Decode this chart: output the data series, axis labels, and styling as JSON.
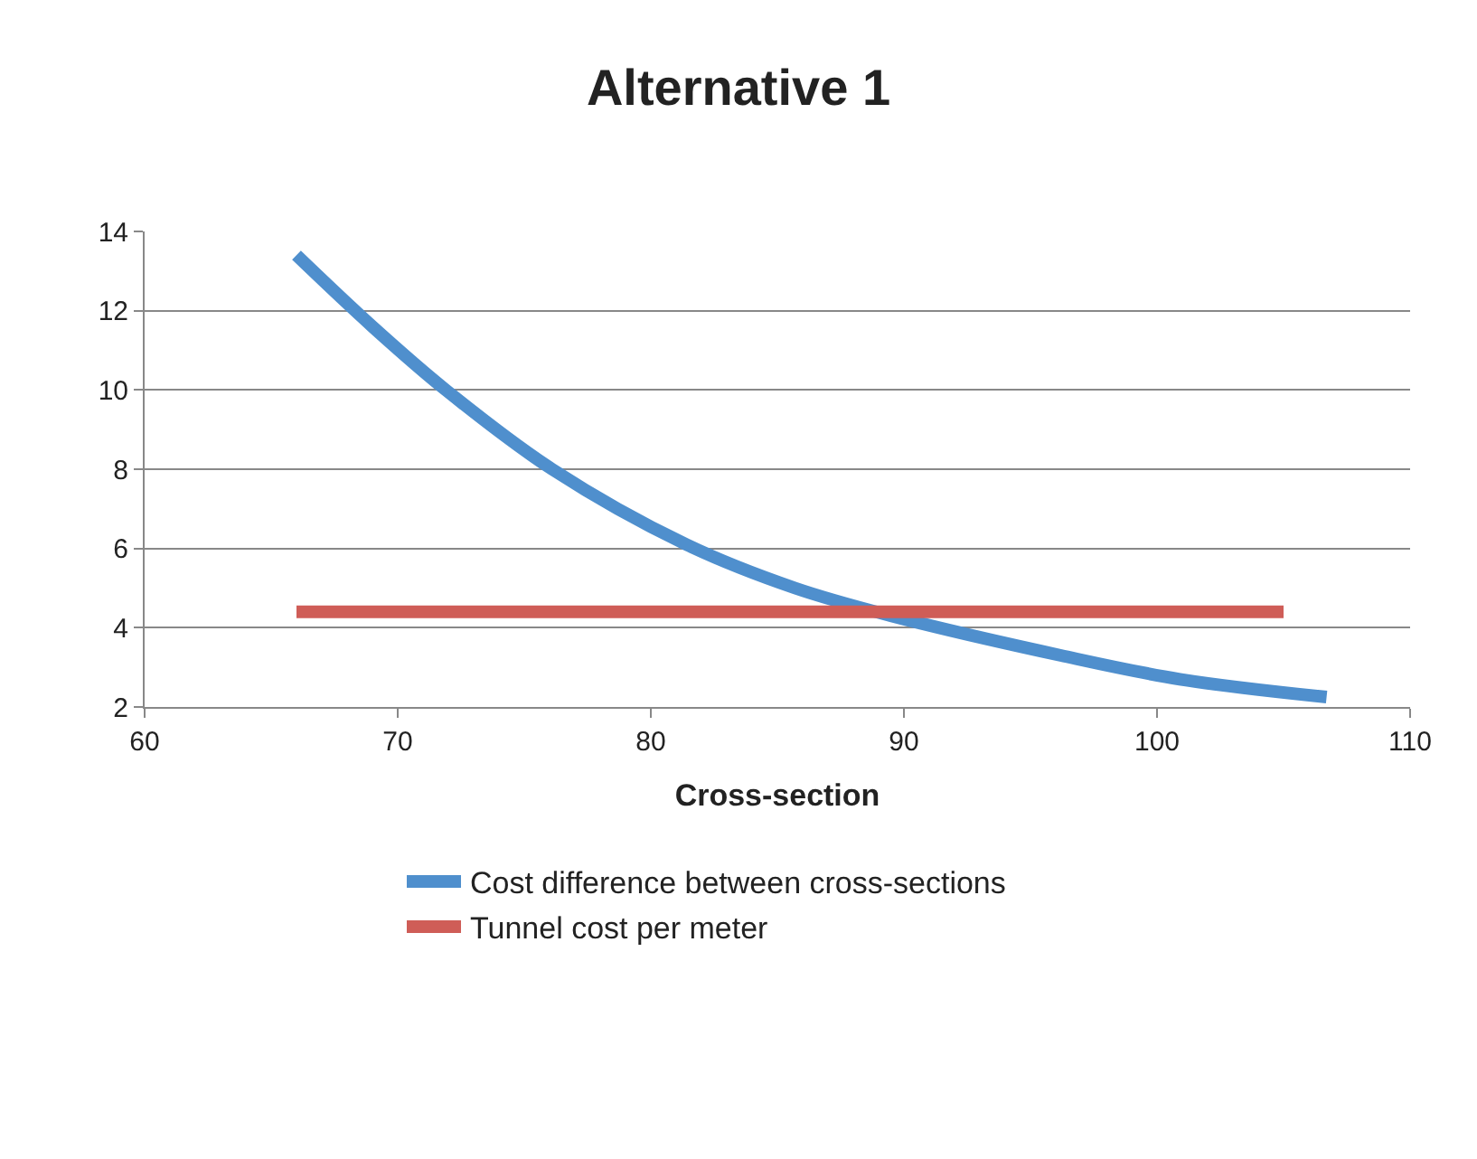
{
  "chart_data": {
    "type": "line",
    "title": "Alternative 1",
    "xlabel": "Cross-section",
    "xlim": [
      60,
      110
    ],
    "xticks": [
      60,
      70,
      80,
      90,
      100,
      110
    ],
    "ylim": [
      2,
      14
    ],
    "yticks": [
      2,
      4,
      6,
      8,
      10,
      12,
      14
    ],
    "grid": "y",
    "legend": "bottom",
    "marker": "none",
    "line_style": "solid",
    "series": [
      {
        "name": "Cost difference between cross-sections",
        "color": "#4f8fcd",
        "x": [
          66,
          69,
          71.9,
          76.1,
          81.4,
          85.7,
          89.5,
          96.2,
          100.9,
          106.7
        ],
        "values": [
          13.4,
          11.6,
          10,
          8,
          6.1,
          5,
          4.3,
          3.3,
          2.7,
          2.25
        ]
      },
      {
        "name": "Tunnel cost per meter",
        "color": "#cf5d57",
        "x": [
          66,
          105
        ],
        "values": [
          4.4,
          4.4
        ]
      }
    ]
  }
}
